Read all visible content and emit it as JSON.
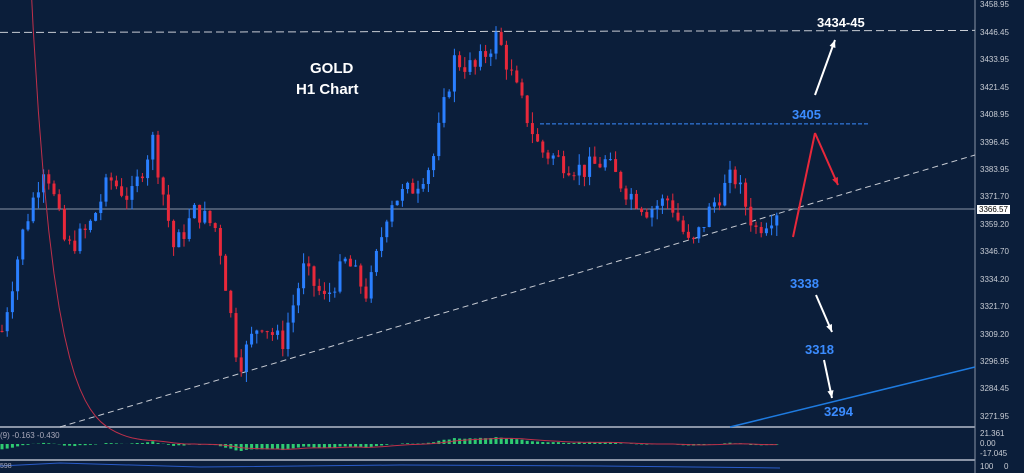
{
  "title": {
    "line1": "GOLD",
    "line2": "H1 Chart"
  },
  "colors": {
    "bg": "#0b1e3a",
    "up": "#2a7fff",
    "down": "#e8283a",
    "macd_hist": "#2ecc71",
    "macd_signal": "#c0304a",
    "blue_line": "#1e7be0"
  },
  "annotations": {
    "target_high": "3434-45",
    "resist": "3405",
    "s1": "3338",
    "s2": "3318",
    "s3": "3294"
  },
  "current_price": "3366.57",
  "indicator": {
    "macd_label": "(9) -0.163 -0.430",
    "macd_ticks": [
      "21.361",
      "0.00",
      "-17.045"
    ],
    "lower_label": "598",
    "lower_ticks": [
      "100",
      "0"
    ]
  },
  "chart_data": {
    "type": "candlestick",
    "symbol": "GOLD",
    "timeframe": "H1",
    "yticks": [
      "3458.95",
      "3446.45",
      "3433.95",
      "3421.45",
      "3408.95",
      "3396.45",
      "3383.95",
      "3371.70",
      "3359.20",
      "3346.70",
      "3334.20",
      "3321.70",
      "3309.20",
      "3296.95",
      "3284.45",
      "3271.95"
    ],
    "ylim": [
      3271.95,
      3458.95
    ],
    "close_path": [
      3311,
      3357,
      3388,
      3348,
      3357,
      3380,
      3371,
      3398,
      3348,
      3366,
      3357,
      3295,
      3316,
      3305,
      3339,
      3325,
      3343,
      3327,
      3370,
      3375,
      3388,
      3434,
      3430,
      3445,
      3418,
      3393,
      3388,
      3384,
      3388,
      3375,
      3366,
      3371,
      3348,
      3368,
      3382,
      3357,
      3366
    ],
    "levels": {
      "dashed_top": 3446.5,
      "dashed_3405": 3405
    }
  }
}
